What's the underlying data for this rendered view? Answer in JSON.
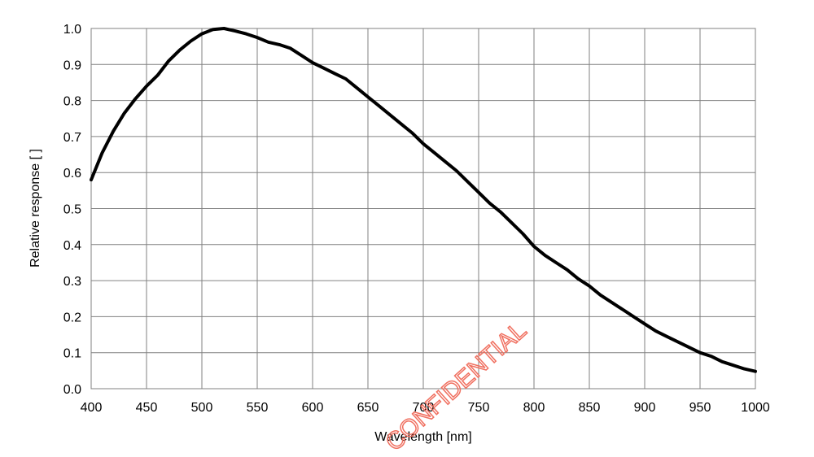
{
  "chart_data": {
    "type": "line",
    "xlabel": "Wavelength [nm]",
    "ylabel": "Relative response [ ]",
    "xlim": [
      400,
      1000
    ],
    "ylim": [
      0.0,
      1.0
    ],
    "x_ticks": [
      "400",
      "450",
      "500",
      "550",
      "600",
      "650",
      "700",
      "750",
      "800",
      "850",
      "900",
      "950",
      "1000"
    ],
    "y_ticks": [
      "0.0",
      "0.1",
      "0.2",
      "0.3",
      "0.4",
      "0.5",
      "0.6",
      "0.7",
      "0.8",
      "0.9",
      "1.0"
    ],
    "grid": true,
    "series": [
      {
        "color": "#000000",
        "x": [
          400,
          410,
          420,
          430,
          440,
          450,
          460,
          470,
          480,
          490,
          500,
          510,
          520,
          530,
          540,
          550,
          560,
          570,
          580,
          590,
          600,
          610,
          620,
          630,
          640,
          650,
          660,
          670,
          680,
          690,
          700,
          710,
          720,
          730,
          740,
          750,
          760,
          770,
          780,
          790,
          800,
          810,
          820,
          830,
          840,
          850,
          860,
          870,
          880,
          890,
          900,
          910,
          920,
          930,
          940,
          950,
          960,
          970,
          980,
          990,
          1000
        ],
        "y": [
          0.58,
          0.655,
          0.715,
          0.765,
          0.805,
          0.84,
          0.87,
          0.91,
          0.94,
          0.965,
          0.985,
          0.997,
          1.0,
          0.993,
          0.985,
          0.975,
          0.962,
          0.955,
          0.945,
          0.925,
          0.905,
          0.89,
          0.875,
          0.86,
          0.835,
          0.81,
          0.785,
          0.76,
          0.735,
          0.71,
          0.68,
          0.655,
          0.63,
          0.605,
          0.575,
          0.545,
          0.515,
          0.49,
          0.46,
          0.43,
          0.395,
          0.37,
          0.35,
          0.33,
          0.305,
          0.285,
          0.26,
          0.24,
          0.22,
          0.2,
          0.18,
          0.16,
          0.145,
          0.13,
          0.115,
          0.1,
          0.09,
          0.075,
          0.065,
          0.055,
          0.048
        ]
      }
    ]
  },
  "watermark": "CONFIDENTIAL"
}
